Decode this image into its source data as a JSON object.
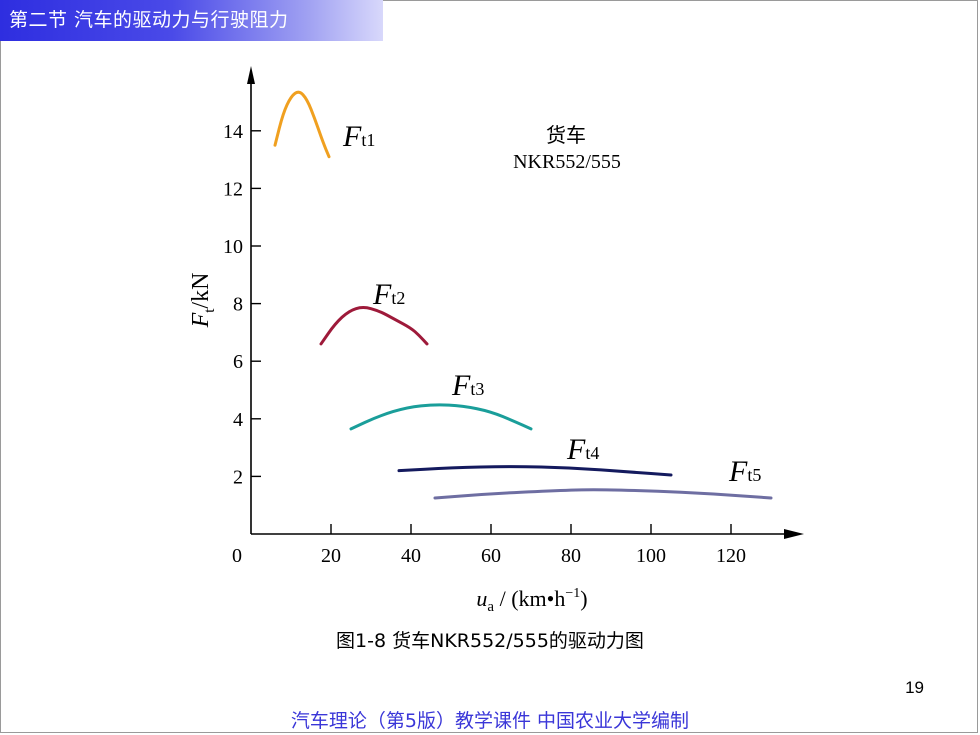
{
  "header": {
    "title": "第二节 汽车的驱动力与行驶阻力"
  },
  "chart_data": {
    "type": "line",
    "vehicle_label_line1": "货车",
    "vehicle_label_line2": "NKR552/555",
    "ylabel_main": "F",
    "ylabel_sub": "t",
    "ylabel_unit": "/kN",
    "xlabel_main": "u",
    "xlabel_sub": "a",
    "xlabel_unit_pre": " / (km•h",
    "xlabel_sup": "−1",
    "xlabel_unit_post": ")",
    "origin_label": "0",
    "xticks": [
      20,
      40,
      60,
      80,
      100,
      120
    ],
    "yticks": [
      2,
      4,
      6,
      8,
      10,
      12,
      14
    ],
    "xlim": [
      0,
      135
    ],
    "ylim": [
      0,
      16
    ],
    "series": [
      {
        "name": "Ft1",
        "label_main": "F",
        "label_sub": "t1",
        "color": "#f0a020",
        "points": [
          [
            6,
            13.5
          ],
          [
            8,
            14.6
          ],
          [
            10,
            15.2
          ],
          [
            12,
            15.4
          ],
          [
            14,
            15.1
          ],
          [
            16,
            14.4
          ],
          [
            18,
            13.6
          ],
          [
            19.5,
            13.1
          ]
        ]
      },
      {
        "name": "Ft2",
        "label_main": "F",
        "label_sub": "t2",
        "color": "#9e1a3a",
        "points": [
          [
            17.5,
            6.6
          ],
          [
            21,
            7.3
          ],
          [
            24.5,
            7.75
          ],
          [
            28,
            7.9
          ],
          [
            32,
            7.75
          ],
          [
            36,
            7.45
          ],
          [
            40,
            7.15
          ],
          [
            42,
            6.9
          ],
          [
            44,
            6.6
          ]
        ]
      },
      {
        "name": "Ft3",
        "label_main": "F",
        "label_sub": "t3",
        "color": "#1a9e9a",
        "points": [
          [
            25,
            3.65
          ],
          [
            32,
            4.1
          ],
          [
            39,
            4.4
          ],
          [
            46,
            4.5
          ],
          [
            53,
            4.45
          ],
          [
            60,
            4.25
          ],
          [
            66,
            3.9
          ],
          [
            70,
            3.65
          ]
        ]
      },
      {
        "name": "Ft4",
        "label_main": "F",
        "label_sub": "t4",
        "color": "#141a5e",
        "points": [
          [
            37,
            2.2
          ],
          [
            50,
            2.3
          ],
          [
            65,
            2.35
          ],
          [
            80,
            2.3
          ],
          [
            95,
            2.15
          ],
          [
            105,
            2.05
          ]
        ]
      },
      {
        "name": "Ft5",
        "label_main": "F",
        "label_sub": "t5",
        "color": "#6e6ea2",
        "points": [
          [
            46,
            1.25
          ],
          [
            60,
            1.4
          ],
          [
            75,
            1.5
          ],
          [
            85,
            1.55
          ],
          [
            100,
            1.5
          ],
          [
            115,
            1.4
          ],
          [
            130,
            1.25
          ]
        ]
      }
    ]
  },
  "caption": "图1-8 货车NKR552/555的驱动力图",
  "page_number": "19",
  "footer": "汽车理论（第5版）教学课件 中国农业大学编制"
}
